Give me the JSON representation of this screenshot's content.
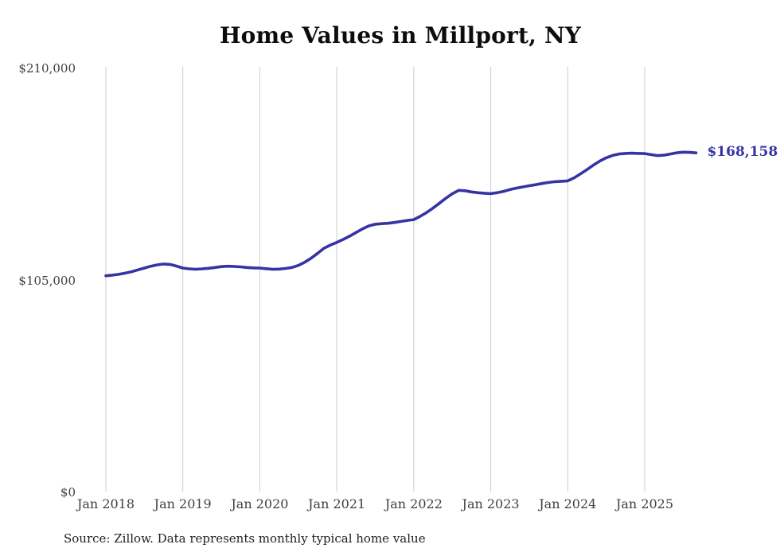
{
  "page": {
    "background_color": "#ffffff"
  },
  "chart": {
    "title": "Home Values in Millport, NY",
    "source_note": "Source: Zillow. Data represents monthly typical home value",
    "end_label": "$168,158",
    "line_color": "#3634a4",
    "grid_color": "#cccccc",
    "tick_text_color": "#3f3f3f",
    "title_color": "#0d0d0d"
  },
  "chart_data": {
    "type": "line",
    "title": "Home Values in Millport, NY",
    "series_name": "Monthly typical home value",
    "xlabel": "",
    "ylabel": "",
    "ylim": [
      0,
      210000
    ],
    "grid": "vertical-only",
    "legend": "none",
    "last_value": 168158,
    "last_value_label": "$168,158",
    "yticks": [
      {
        "value": 0,
        "label": "$0"
      },
      {
        "value": 105000,
        "label": "$105,000"
      },
      {
        "value": 210000,
        "label": "$210,000"
      }
    ],
    "xticks": [
      {
        "month_index": 0,
        "label": "Jan 2018"
      },
      {
        "month_index": 12,
        "label": "Jan 2019"
      },
      {
        "month_index": 24,
        "label": "Jan 2020"
      },
      {
        "month_index": 36,
        "label": "Jan 2021"
      },
      {
        "month_index": 48,
        "label": "Jan 2022"
      },
      {
        "month_index": 60,
        "label": "Jan 2023"
      },
      {
        "month_index": 72,
        "label": "Jan 2024"
      },
      {
        "month_index": 84,
        "label": "Jan 2025"
      }
    ],
    "x": [
      "2018-01",
      "2018-02",
      "2018-03",
      "2018-04",
      "2018-05",
      "2018-06",
      "2018-07",
      "2018-08",
      "2018-09",
      "2018-10",
      "2018-11",
      "2018-12",
      "2019-01",
      "2019-02",
      "2019-03",
      "2019-04",
      "2019-05",
      "2019-06",
      "2019-07",
      "2019-08",
      "2019-09",
      "2019-10",
      "2019-11",
      "2019-12",
      "2020-01",
      "2020-02",
      "2020-03",
      "2020-04",
      "2020-05",
      "2020-06",
      "2020-07",
      "2020-08",
      "2020-09",
      "2020-10",
      "2020-11",
      "2020-12",
      "2021-01",
      "2021-02",
      "2021-03",
      "2021-04",
      "2021-05",
      "2021-06",
      "2021-07",
      "2021-08",
      "2021-09",
      "2021-10",
      "2021-11",
      "2021-12",
      "2022-01",
      "2022-02",
      "2022-03",
      "2022-04",
      "2022-05",
      "2022-06",
      "2022-07",
      "2022-08",
      "2022-09",
      "2022-10",
      "2022-11",
      "2022-12",
      "2023-01",
      "2023-02",
      "2023-03",
      "2023-04",
      "2023-05",
      "2023-06",
      "2023-07",
      "2023-08",
      "2023-09",
      "2023-10",
      "2023-11",
      "2023-12",
      "2024-01",
      "2024-02",
      "2024-03",
      "2024-04",
      "2024-05",
      "2024-06",
      "2024-07",
      "2024-08",
      "2024-09",
      "2024-10",
      "2024-11",
      "2024-12",
      "2025-01",
      "2025-02",
      "2025-03",
      "2025-04",
      "2025-05",
      "2025-06",
      "2025-07",
      "2025-08",
      "2025-09"
    ],
    "values": [
      107300,
      107600,
      108000,
      108600,
      109300,
      110200,
      111100,
      112000,
      112700,
      113100,
      112900,
      112100,
      111100,
      110700,
      110500,
      110700,
      111000,
      111400,
      111800,
      112000,
      111900,
      111700,
      111400,
      111200,
      111100,
      110800,
      110500,
      110600,
      110900,
      111400,
      112400,
      114000,
      116000,
      118400,
      120900,
      122500,
      123800,
      125300,
      126900,
      128700,
      130500,
      132000,
      132800,
      133100,
      133300,
      133700,
      134200,
      134700,
      135100,
      136700,
      138600,
      140800,
      143200,
      145700,
      147900,
      149600,
      149400,
      148800,
      148400,
      148200,
      148000,
      148400,
      149100,
      150000,
      150700,
      151300,
      151900,
      152400,
      153000,
      153500,
      153900,
      154100,
      154300,
      155800,
      157800,
      159900,
      162100,
      164100,
      165700,
      166900,
      167600,
      167900,
      168000,
      167900,
      167800,
      167300,
      166800,
      167000,
      167600,
      168200,
      168500,
      168400,
      168158
    ]
  }
}
